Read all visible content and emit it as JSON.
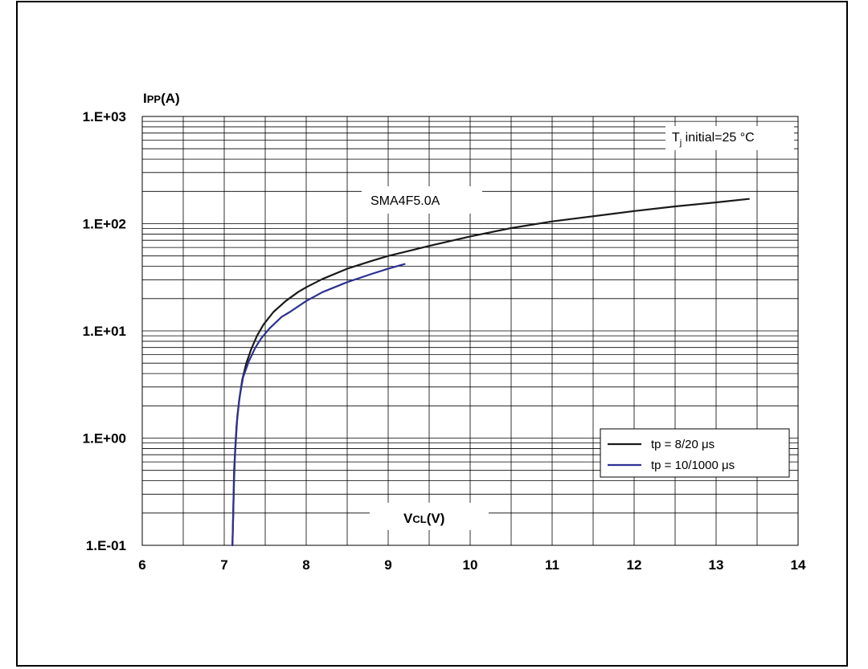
{
  "chart_data": {
    "type": "line",
    "ylabel_main": "I",
    "ylabel_sub": "PP",
    "ylabel_unit": "(A)",
    "xlabel_main": "V",
    "xlabel_sub": "CL",
    "xlabel_unit": "(V)",
    "x_scale": "linear",
    "y_scale": "log",
    "xlim": [
      6,
      14
    ],
    "ylim": [
      0.1,
      1000
    ],
    "x_ticks": [
      6,
      7,
      8,
      9,
      10,
      11,
      12,
      13,
      14
    ],
    "x_tick_labels": [
      "6",
      "7",
      "8",
      "9",
      "10",
      "11",
      "12",
      "13",
      "14"
    ],
    "y_ticks": [
      0.1,
      1,
      10,
      100,
      1000
    ],
    "y_tick_labels": [
      "1.E-01",
      "1.E+00",
      "1.E+01",
      "1.E+02",
      "1.E+03"
    ],
    "grid": true,
    "annotation_device": "SMA4F5.0A",
    "annotation_condition_main": "T",
    "annotation_condition_sub": "j",
    "annotation_condition_rest": " initial=25 °C",
    "legend_position": "bottom-right",
    "series": [
      {
        "name": "tp = 8/20 μs",
        "color": "#1a1a1a",
        "x": [
          7.1,
          7.11,
          7.12,
          7.13,
          7.15,
          7.18,
          7.22,
          7.27,
          7.33,
          7.4,
          7.48,
          7.6,
          7.75,
          7.9,
          8.0,
          8.2,
          8.5,
          8.8,
          9.0,
          9.5,
          10.0,
          10.5,
          11.0,
          12.0,
          12.5,
          13.0,
          13.4
        ],
        "y": [
          0.1,
          0.2,
          0.4,
          0.7,
          1.3,
          2.2,
          3.5,
          5.0,
          6.8,
          9.0,
          11.5,
          15.0,
          19.0,
          23.0,
          25.5,
          30.5,
          38.0,
          45.0,
          50.0,
          62.0,
          76.0,
          91.0,
          105.0,
          131.0,
          145.0,
          158.0,
          170.0
        ]
      },
      {
        "name": "tp = 10/1000 μs",
        "color": "#2e3192",
        "x": [
          7.1,
          7.11,
          7.12,
          7.14,
          7.16,
          7.19,
          7.23,
          7.3,
          7.38,
          7.45,
          7.55,
          7.7,
          7.8,
          8.0,
          8.2,
          8.5,
          8.8,
          9.0,
          9.2
        ],
        "y": [
          0.1,
          0.2,
          0.5,
          0.9,
          1.6,
          2.5,
          3.7,
          5.2,
          7.0,
          8.5,
          10.5,
          13.5,
          15.0,
          19.0,
          23.0,
          28.5,
          34.0,
          38.0,
          42.0
        ]
      }
    ]
  }
}
